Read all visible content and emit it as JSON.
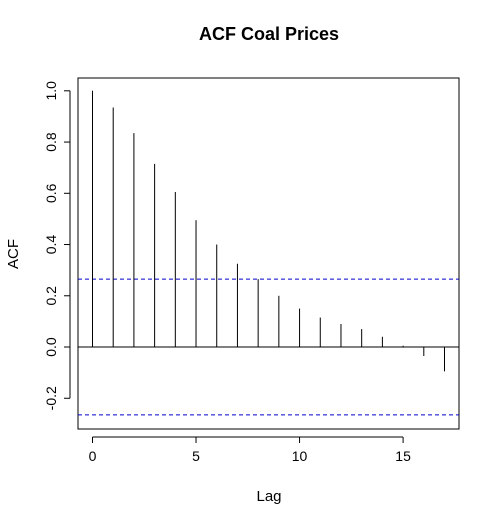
{
  "chart_data": {
    "type": "bar",
    "title": "ACF Coal Prices",
    "xlabel": "Lag",
    "ylabel": "ACF",
    "x": [
      0,
      1,
      2,
      3,
      4,
      5,
      6,
      7,
      8,
      9,
      10,
      11,
      12,
      13,
      14,
      15,
      16,
      17
    ],
    "values": [
      1.0,
      0.935,
      0.835,
      0.715,
      0.605,
      0.495,
      0.4,
      0.325,
      0.265,
      0.2,
      0.15,
      0.115,
      0.09,
      0.07,
      0.04,
      0.005,
      -0.035,
      -0.095
    ],
    "confidence_limit": 0.265,
    "xlim": [
      -0.7,
      17.7
    ],
    "ylim": [
      -0.32,
      1.05
    ],
    "xticks": [
      0,
      5,
      10,
      15
    ],
    "yticks": [
      -0.2,
      0.0,
      0.2,
      0.4,
      0.6,
      0.8,
      1.0
    ],
    "ytick_labels": [
      "-0.2",
      "0.0",
      "0.2",
      "0.4",
      "0.6",
      "0.8",
      "1.0"
    ],
    "xtick_labels": [
      "0",
      "5",
      "10",
      "15"
    ],
    "colors": {
      "bars": "#000000",
      "confidence": "#0000CD",
      "zero_line": "#000000"
    },
    "grid": false
  }
}
